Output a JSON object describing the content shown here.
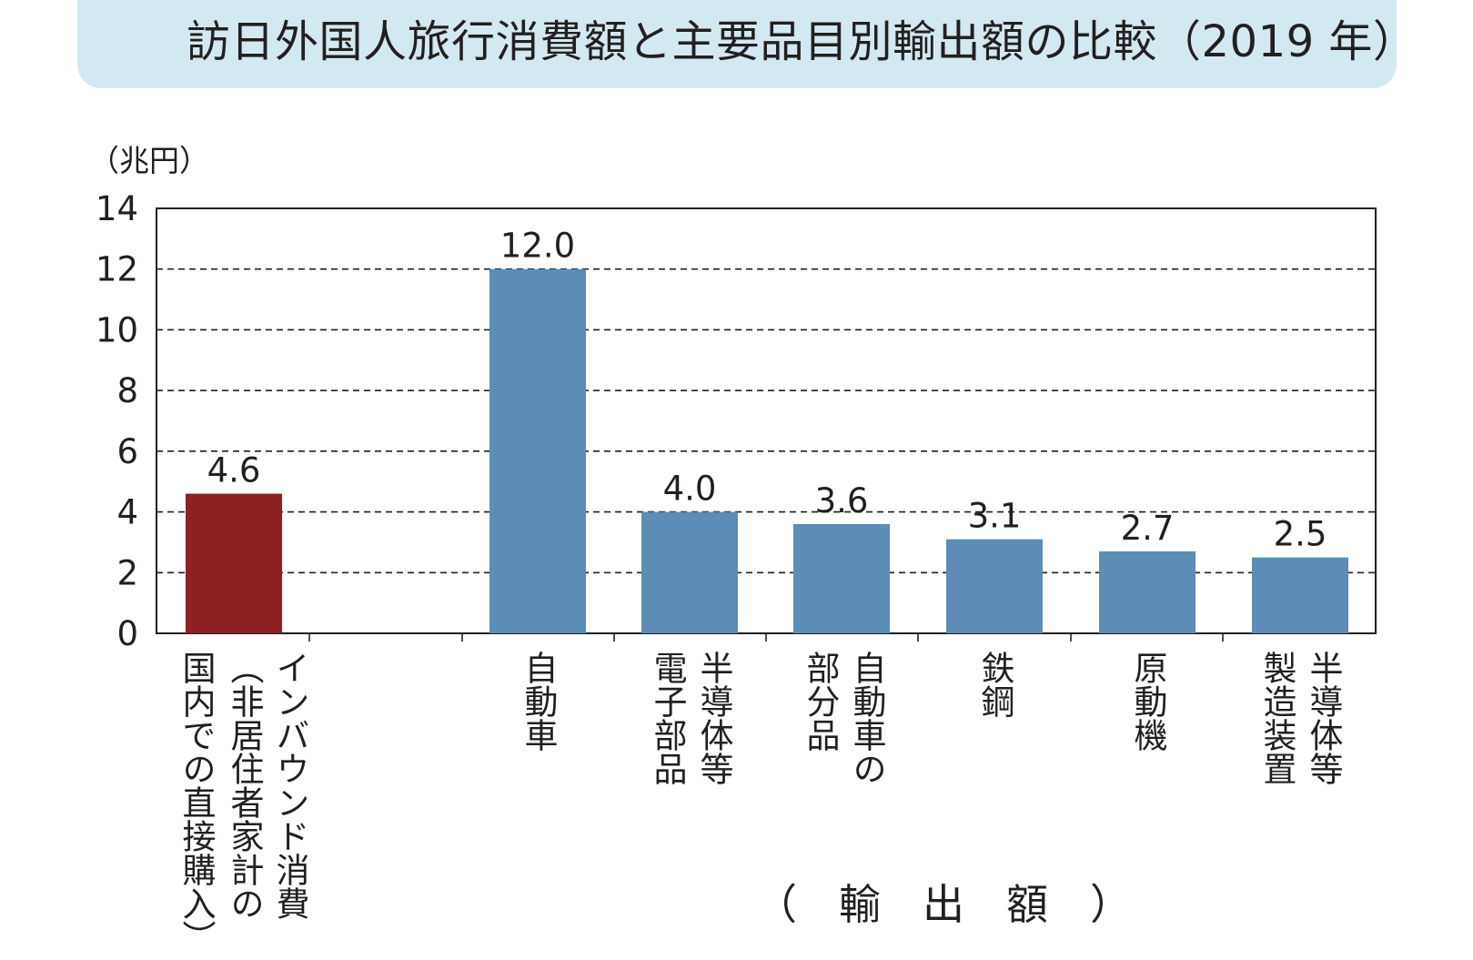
{
  "title": "訪日外国人旅行消費額と主要品目別輸出額の比較（2019 年）",
  "colors": {
    "inbound": "#8e2024",
    "export": "#5b8db6",
    "title_bg": "#d3e9f1"
  },
  "chart_data": {
    "type": "bar",
    "title": "訪日外国人旅行消費額と主要品目別輸出額の比較（2019 年）",
    "unit": "（兆円）",
    "ylim": [
      0,
      14
    ],
    "yticks": [
      "0",
      "2",
      "4",
      "6",
      "8",
      "10",
      "12",
      "14"
    ],
    "grid": "dashed-horizontal",
    "series": [
      {
        "name": "インバウンド消費",
        "values": [
          4.6
        ]
      },
      {
        "name": "輸出額",
        "values": [
          12.0,
          4.0,
          3.6,
          3.1,
          2.7,
          2.5
        ]
      }
    ],
    "bars": [
      {
        "category": "インバウンド消費（非居住者家計の国内での直接購入）",
        "value": 4.6,
        "value_label": "4.6",
        "group": "inbound",
        "label_lines": [
          "インバウンド消費",
          "（非居住者家計の",
          "国内での直接購入）"
        ]
      },
      {
        "category": "自動車",
        "value": 12.0,
        "value_label": "12.0",
        "group": "export",
        "label_lines": [
          "自動車"
        ]
      },
      {
        "category": "半導体等電子部品",
        "value": 4.0,
        "value_label": "4.0",
        "group": "export",
        "label_lines": [
          "半導体等",
          "電子部品"
        ]
      },
      {
        "category": "自動車の部分品",
        "value": 3.6,
        "value_label": "3.6",
        "group": "export",
        "label_lines": [
          "自動車の",
          "部分品"
        ]
      },
      {
        "category": "鉄鋼",
        "value": 3.1,
        "value_label": "3.1",
        "group": "export",
        "label_lines": [
          "鉄鋼"
        ]
      },
      {
        "category": "原動機",
        "value": 2.7,
        "value_label": "2.7",
        "group": "export",
        "label_lines": [
          "原動機"
        ]
      },
      {
        "category": "半導体等製造装置",
        "value": 2.5,
        "value_label": "2.5",
        "group": "export",
        "label_lines": [
          "半導体等",
          "製造装置"
        ]
      }
    ],
    "group_label": "（　輸　出　額　）"
  }
}
